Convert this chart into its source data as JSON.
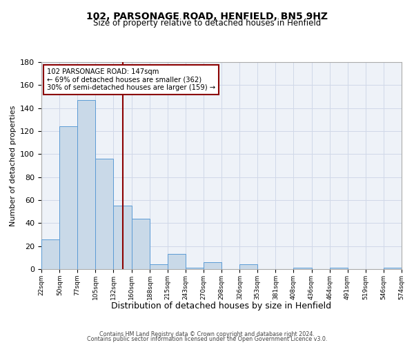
{
  "title": "102, PARSONAGE ROAD, HENFIELD, BN5 9HZ",
  "subtitle": "Size of property relative to detached houses in Henfield",
  "xlabel": "Distribution of detached houses by size in Henfield",
  "ylabel": "Number of detached properties",
  "bin_edges": [
    22,
    50,
    77,
    105,
    132,
    160,
    188,
    215,
    243,
    270,
    298,
    326,
    353,
    381,
    408,
    436,
    464,
    491,
    519,
    546,
    574
  ],
  "bar_heights": [
    26,
    124,
    147,
    96,
    55,
    44,
    4,
    13,
    1,
    6,
    0,
    4,
    0,
    0,
    1,
    0,
    1,
    0,
    0,
    1
  ],
  "bar_color": "#c9d9e8",
  "bar_edge_color": "#5b9bd5",
  "property_size": 147,
  "vline_color": "#8b0000",
  "annotation_box_color": "#8b0000",
  "annotation_line1": "102 PARSONAGE ROAD: 147sqm",
  "annotation_line2": "← 69% of detached houses are smaller (362)",
  "annotation_line3": "30% of semi-detached houses are larger (159) →",
  "ylim": [
    0,
    180
  ],
  "yticks": [
    0,
    20,
    40,
    60,
    80,
    100,
    120,
    140,
    160,
    180
  ],
  "tick_labels": [
    "22sqm",
    "50sqm",
    "77sqm",
    "105sqm",
    "132sqm",
    "160sqm",
    "188sqm",
    "215sqm",
    "243sqm",
    "270sqm",
    "298sqm",
    "326sqm",
    "353sqm",
    "381sqm",
    "408sqm",
    "436sqm",
    "464sqm",
    "491sqm",
    "519sqm",
    "546sqm",
    "574sqm"
  ],
  "footer_line1": "Contains HM Land Registry data © Crown copyright and database right 2024.",
  "footer_line2": "Contains public sector information licensed under the Open Government Licence v3.0.",
  "grid_color": "#d0d8e8",
  "background_color": "#eef2f8"
}
